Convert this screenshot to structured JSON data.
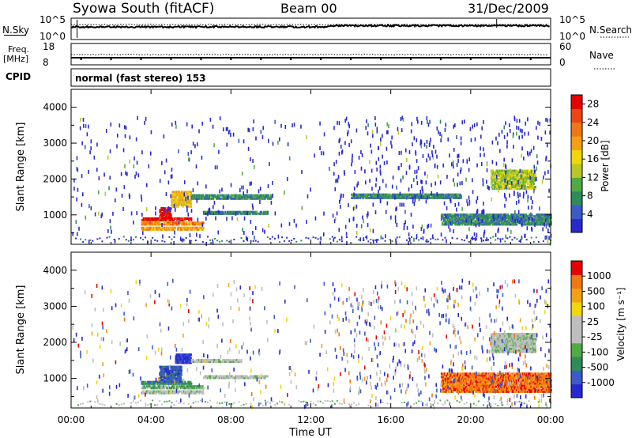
{
  "header": {
    "station": "Syowa South (fitACF)",
    "beam": "Beam 00",
    "date": "31/Dec/2009"
  },
  "top_panels": {
    "nsky_label": "N.Sky",
    "nsky_ticks": [
      "10^5",
      "10^0"
    ],
    "nsearch_label": "N.Search",
    "nsearch_ticks": [
      "10^5",
      "10^0"
    ],
    "freq_label": "Freq.",
    "freq_unit": "[MHz]",
    "freq_ticks": [
      "18",
      "8"
    ],
    "nave_label": "Nave",
    "nave_ticks": [
      "60",
      "0"
    ],
    "cpid_label": "CPID",
    "cpid_text": "normal (fast stereo) 153"
  },
  "time_axis": {
    "label": "Time UT",
    "ticks": [
      "00:00",
      "04:00",
      "08:00",
      "12:00",
      "16:00",
      "20:00",
      "00:00"
    ]
  },
  "colors": {
    "power": [
      "#2828d2",
      "#3c5ac8",
      "#2d8c5a",
      "#50aa46",
      "#b9c826",
      "#f0d70a",
      "#f5a014",
      "#f07814",
      "#eb4614",
      "#e60000"
    ],
    "velocity": [
      "#2828d2",
      "#3c5ac8",
      "#2d8c5a",
      "#50aa46",
      "#bebebe",
      "#bebebe",
      "#f0d70a",
      "#f5a014",
      "#f07814",
      "#e60000"
    ]
  },
  "chart_data": [
    {
      "type": "heatmap",
      "name": "power",
      "ylabel": "Slant Range [km]",
      "yticks": [
        "1000",
        "2000",
        "3000",
        "4000"
      ],
      "ylim": [
        180,
        4500
      ],
      "xlim": [
        0,
        24
      ],
      "colorbar_label": "Power [dB]",
      "colorbar_ticks": [
        "28",
        "24",
        "20",
        "16",
        "12",
        "8",
        "4"
      ],
      "colorbar_range": [
        0,
        30
      ],
      "features": [
        {
          "t0": 3.5,
          "t1": 6.6,
          "r0": 560,
          "r1": 640,
          "level": 18
        },
        {
          "t0": 3.5,
          "t1": 6.6,
          "r0": 700,
          "r1": 770,
          "level": 20
        },
        {
          "t0": 3.5,
          "t1": 6.0,
          "r0": 820,
          "r1": 900,
          "level": 26
        },
        {
          "t0": 4.4,
          "t1": 5.0,
          "r0": 880,
          "r1": 1180,
          "level": 28
        },
        {
          "t0": 5.0,
          "t1": 6.0,
          "r0": 1200,
          "r1": 1650,
          "level": 16
        },
        {
          "t0": 6.0,
          "t1": 10.0,
          "r0": 1420,
          "r1": 1520,
          "level": 6
        },
        {
          "t0": 6.6,
          "t1": 9.8,
          "r0": 1000,
          "r1": 1080,
          "level": 5
        },
        {
          "t0": 14.0,
          "t1": 19.5,
          "r0": 1440,
          "r1": 1560,
          "level": 6
        },
        {
          "t0": 21.0,
          "t1": 23.2,
          "r0": 1700,
          "r1": 2200,
          "level": 12
        },
        {
          "t0": 18.5,
          "t1": 24.0,
          "r0": 700,
          "r1": 1000,
          "level": 6
        }
      ]
    },
    {
      "type": "heatmap",
      "name": "velocity",
      "ylabel": "Slant Range [km]",
      "yticks": [
        "1000",
        "2000",
        "3000",
        "4000"
      ],
      "ylim": [
        180,
        4500
      ],
      "xlim": [
        0,
        24
      ],
      "colorbar_label": "Velocity [m s⁻¹]",
      "colorbar_ticks": [
        "1000",
        "500",
        "100",
        "25",
        "-25",
        "-100",
        "-500",
        "-1000"
      ],
      "features": [
        {
          "t0": 3.5,
          "t1": 6.6,
          "r0": 560,
          "r1": 640,
          "level": 4
        },
        {
          "t0": 3.5,
          "t1": 6.6,
          "r0": 700,
          "r1": 770,
          "level": 3
        },
        {
          "t0": 3.5,
          "t1": 6.0,
          "r0": 820,
          "r1": 900,
          "level": 2
        },
        {
          "t0": 4.4,
          "t1": 5.5,
          "r0": 880,
          "r1": 1300,
          "level": 1
        },
        {
          "t0": 5.2,
          "t1": 6.0,
          "r0": 1400,
          "r1": 1650,
          "level": 0
        },
        {
          "t0": 6.0,
          "t1": 8.5,
          "r0": 1430,
          "r1": 1520,
          "level": 4
        },
        {
          "t0": 6.6,
          "t1": 9.8,
          "r0": 980,
          "r1": 1070,
          "level": 4
        },
        {
          "t0": 21.0,
          "t1": 23.2,
          "r0": 1700,
          "r1": 2200,
          "level": 4
        },
        {
          "t0": 18.5,
          "t1": 24.0,
          "r0": 600,
          "r1": 1100,
          "level": 8
        }
      ]
    }
  ]
}
